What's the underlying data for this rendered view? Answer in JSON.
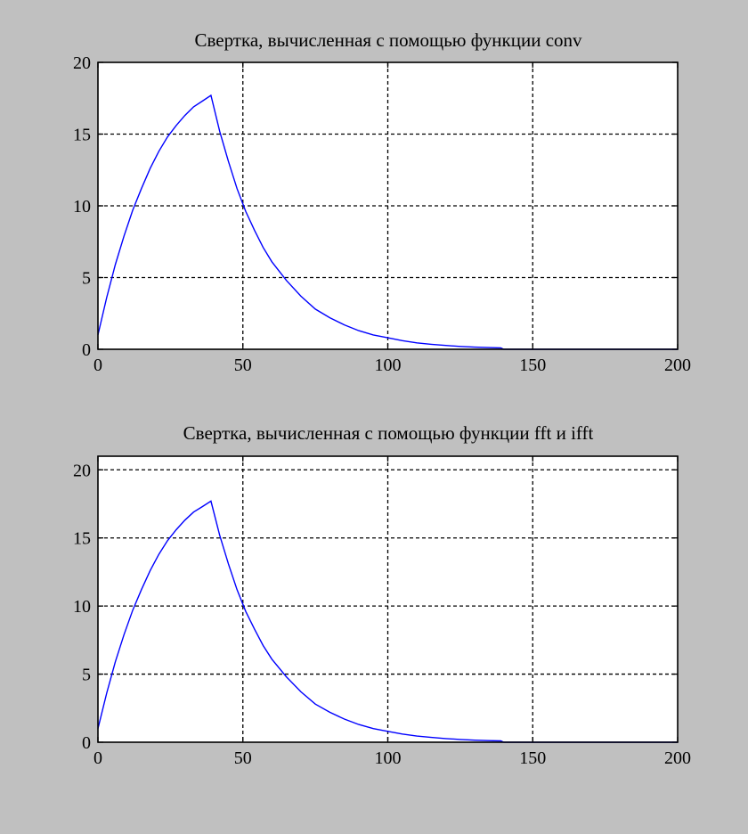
{
  "figure": {
    "background": "#c0c0c0",
    "axes_background": "#ffffff",
    "line_color": "#0000ff",
    "grid_color": "#000000"
  },
  "chart_data": [
    {
      "type": "line",
      "title": "Свертка, вычисленная с помощью функции conv",
      "xlabel": "",
      "ylabel": "",
      "xlim": [
        0,
        200
      ],
      "ylim": [
        0,
        20
      ],
      "xticks": [
        0,
        50,
        100,
        150,
        200
      ],
      "yticks": [
        0,
        5,
        10,
        15,
        20
      ],
      "grid": true,
      "series": [
        {
          "x": [
            0,
            3,
            6,
            9,
            12,
            15,
            18,
            21,
            24,
            27,
            30,
            33,
            36,
            39,
            42,
            45,
            48,
            51,
            54,
            57,
            60,
            65,
            70,
            75,
            80,
            85,
            90,
            95,
            100,
            105,
            110,
            115,
            120,
            125,
            130,
            135,
            139,
            140,
            150,
            160,
            170,
            180,
            190,
            200
          ],
          "y": [
            1.0,
            3.6,
            5.9,
            7.9,
            9.7,
            11.2,
            12.6,
            13.8,
            14.8,
            15.6,
            16.3,
            16.9,
            17.3,
            17.7,
            15.2,
            13.1,
            11.2,
            9.6,
            8.3,
            7.1,
            6.1,
            4.8,
            3.7,
            2.8,
            2.2,
            1.7,
            1.3,
            1.0,
            0.8,
            0.6,
            0.45,
            0.35,
            0.27,
            0.2,
            0.15,
            0.12,
            0.1,
            0.0,
            0.0,
            0.0,
            0.0,
            0.0,
            0.0,
            0.0
          ]
        }
      ]
    },
    {
      "type": "line",
      "title": "Свертка, вычисленная с помощью функции fft и ifft",
      "xlabel": "",
      "ylabel": "",
      "xlim": [
        0,
        200
      ],
      "ylim": [
        0,
        21
      ],
      "xticks": [
        0,
        50,
        100,
        150,
        200
      ],
      "yticks": [
        0,
        5,
        10,
        15,
        20
      ],
      "grid": true,
      "series": [
        {
          "x": [
            0,
            3,
            6,
            9,
            12,
            15,
            18,
            21,
            24,
            27,
            30,
            33,
            36,
            39,
            42,
            45,
            48,
            51,
            54,
            57,
            60,
            65,
            70,
            75,
            80,
            85,
            90,
            95,
            100,
            105,
            110,
            115,
            120,
            125,
            130,
            135,
            139,
            140,
            150,
            160,
            170,
            180,
            190,
            200
          ],
          "y": [
            1.0,
            3.6,
            5.9,
            7.9,
            9.7,
            11.2,
            12.6,
            13.8,
            14.8,
            15.6,
            16.3,
            16.9,
            17.3,
            17.7,
            15.2,
            13.1,
            11.2,
            9.6,
            8.3,
            7.1,
            6.1,
            4.8,
            3.7,
            2.8,
            2.2,
            1.7,
            1.3,
            1.0,
            0.8,
            0.6,
            0.45,
            0.35,
            0.27,
            0.2,
            0.15,
            0.12,
            0.1,
            0.0,
            0.0,
            0.0,
            0.0,
            0.0,
            0.0,
            0.0
          ]
        }
      ]
    }
  ]
}
